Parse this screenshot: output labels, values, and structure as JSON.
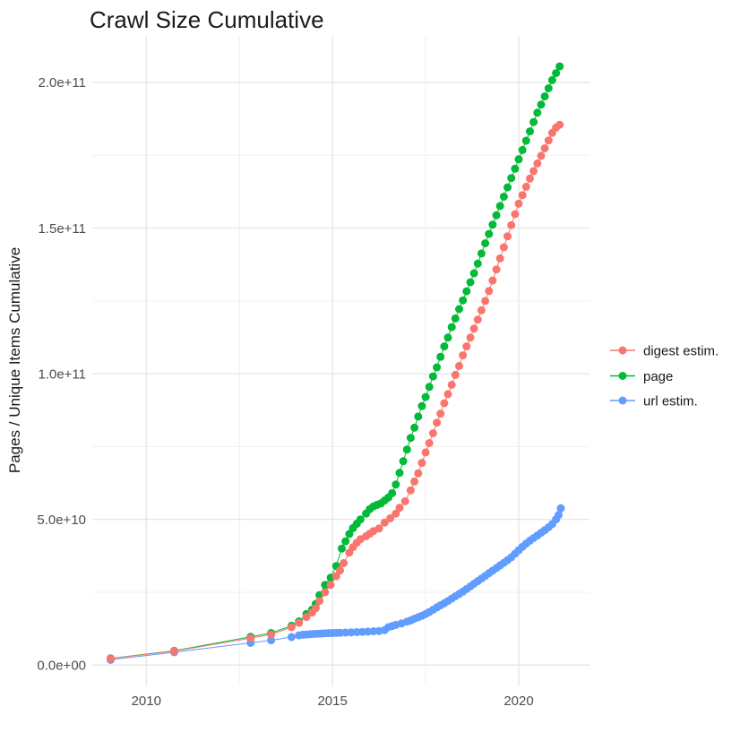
{
  "page": {
    "background": "#ffffff"
  },
  "chart_data": {
    "type": "scatter",
    "title": "Crawl Size Cumulative",
    "xlabel": "",
    "ylabel": "Pages / Unique Items Cumulative",
    "value_unit": "items (values stored in billions, 1 = 1e9)",
    "grid": true,
    "legend_position": "right",
    "x_axis": {
      "range": [
        2008.55,
        2021.9
      ],
      "ticks": [
        {
          "value": 2010,
          "label": "2010"
        },
        {
          "value": 2015,
          "label": "2015"
        },
        {
          "value": 2020,
          "label": "2020"
        }
      ],
      "minor": [
        2012.5,
        2017.5
      ]
    },
    "y_axis": {
      "range": [
        -7,
        216
      ],
      "ticks": [
        {
          "value": 0,
          "label": "0.0e+00"
        },
        {
          "value": 50,
          "label": "5.0e+10"
        },
        {
          "value": 100,
          "label": "1.0e+11"
        },
        {
          "value": 150,
          "label": "1.5e+11"
        },
        {
          "value": 200,
          "label": "2.0e+11"
        }
      ],
      "minor": [
        25,
        75,
        125,
        175
      ]
    },
    "legend": [
      {
        "label": "digest estim.",
        "color": "#F8766D"
      },
      {
        "label": "page",
        "color": "#00BA38"
      },
      {
        "label": "url estim.",
        "color": "#619CFF"
      }
    ],
    "draw_order": [
      "page",
      "url estim.",
      "digest estim."
    ],
    "series": [
      {
        "name": "digest estim.",
        "color": "#F8766D",
        "points": [
          [
            2009.04,
            2.2
          ],
          [
            2010.75,
            4.8
          ],
          [
            2012.8,
            9.2
          ],
          [
            2013.35,
            10.5
          ],
          [
            2013.9,
            13.0
          ],
          [
            2014.1,
            14.5
          ],
          [
            2014.3,
            16.5
          ],
          [
            2014.45,
            18.0
          ],
          [
            2014.55,
            19.5
          ],
          [
            2014.65,
            22.0
          ],
          [
            2014.8,
            25.0
          ],
          [
            2014.95,
            27.5
          ],
          [
            2015.1,
            30.5
          ],
          [
            2015.2,
            32.5
          ],
          [
            2015.3,
            35.0
          ],
          [
            2015.45,
            38.6
          ],
          [
            2015.55,
            40.5
          ],
          [
            2015.65,
            42.0
          ],
          [
            2015.75,
            43.2
          ],
          [
            2015.9,
            44.2
          ],
          [
            2016.0,
            45.1
          ],
          [
            2016.1,
            46.0
          ],
          [
            2016.25,
            46.9
          ],
          [
            2016.4,
            48.9
          ],
          [
            2016.55,
            50.4
          ],
          [
            2016.7,
            52.0
          ],
          [
            2016.8,
            54.0
          ],
          [
            2016.95,
            56.2
          ],
          [
            2017.1,
            60.0
          ],
          [
            2017.2,
            63.0
          ],
          [
            2017.3,
            65.8
          ],
          [
            2017.4,
            69.4
          ],
          [
            2017.5,
            73.0
          ],
          [
            2017.6,
            76.2
          ],
          [
            2017.7,
            79.6
          ],
          [
            2017.8,
            83.2
          ],
          [
            2017.9,
            86.3
          ],
          [
            2018.0,
            89.9
          ],
          [
            2018.1,
            93.0
          ],
          [
            2018.2,
            96.2
          ],
          [
            2018.3,
            99.6
          ],
          [
            2018.4,
            102.7
          ],
          [
            2018.5,
            106.3
          ],
          [
            2018.6,
            109.4
          ],
          [
            2018.7,
            112.4
          ],
          [
            2018.8,
            115.5
          ],
          [
            2018.9,
            118.6
          ],
          [
            2019.0,
            121.8
          ],
          [
            2019.1,
            125.0
          ],
          [
            2019.2,
            128.4
          ],
          [
            2019.3,
            132.0
          ],
          [
            2019.4,
            135.8
          ],
          [
            2019.5,
            139.6
          ],
          [
            2019.6,
            143.4
          ],
          [
            2019.7,
            147.2
          ],
          [
            2019.8,
            151.0
          ],
          [
            2019.9,
            154.8
          ],
          [
            2020.0,
            158.4
          ],
          [
            2020.1,
            161.3
          ],
          [
            2020.2,
            164.2
          ],
          [
            2020.3,
            167.0
          ],
          [
            2020.4,
            169.6
          ],
          [
            2020.5,
            172.2
          ],
          [
            2020.6,
            174.8
          ],
          [
            2020.7,
            177.4
          ],
          [
            2020.8,
            180.1
          ],
          [
            2020.9,
            182.7
          ],
          [
            2021.0,
            184.5
          ],
          [
            2021.1,
            185.5
          ]
        ]
      },
      {
        "name": "page",
        "color": "#00BA38",
        "points": [
          [
            2009.04,
            2.3
          ],
          [
            2010.75,
            4.9
          ],
          [
            2012.8,
            9.7
          ],
          [
            2013.35,
            11.0
          ],
          [
            2013.9,
            13.5
          ],
          [
            2014.1,
            15.0
          ],
          [
            2014.3,
            17.5
          ],
          [
            2014.45,
            19.0
          ],
          [
            2014.55,
            21.0
          ],
          [
            2014.65,
            24.0
          ],
          [
            2014.8,
            27.5
          ],
          [
            2014.95,
            30.0
          ],
          [
            2015.1,
            34.0
          ],
          [
            2015.25,
            40.0
          ],
          [
            2015.35,
            42.5
          ],
          [
            2015.45,
            45.0
          ],
          [
            2015.55,
            47.0
          ],
          [
            2015.65,
            48.5
          ],
          [
            2015.75,
            50.0
          ],
          [
            2015.9,
            52.0
          ],
          [
            2016.0,
            53.5
          ],
          [
            2016.1,
            54.5
          ],
          [
            2016.2,
            55.0
          ],
          [
            2016.3,
            55.5
          ],
          [
            2016.4,
            56.5
          ],
          [
            2016.5,
            57.5
          ],
          [
            2016.6,
            59.0
          ],
          [
            2016.7,
            62.0
          ],
          [
            2016.8,
            66.0
          ],
          [
            2016.9,
            70.0
          ],
          [
            2017.0,
            74.0
          ],
          [
            2017.1,
            78.0
          ],
          [
            2017.2,
            81.5
          ],
          [
            2017.3,
            85.3
          ],
          [
            2017.4,
            88.9
          ],
          [
            2017.5,
            92.0
          ],
          [
            2017.6,
            95.5
          ],
          [
            2017.7,
            99.1
          ],
          [
            2017.8,
            102.2
          ],
          [
            2017.9,
            105.8
          ],
          [
            2018.0,
            109.4
          ],
          [
            2018.1,
            112.4
          ],
          [
            2018.2,
            116.0
          ],
          [
            2018.3,
            119.0
          ],
          [
            2018.4,
            122.2
          ],
          [
            2018.5,
            125.2
          ],
          [
            2018.6,
            128.3
          ],
          [
            2018.7,
            131.4
          ],
          [
            2018.8,
            134.5
          ],
          [
            2018.9,
            137.8
          ],
          [
            2019.0,
            141.3
          ],
          [
            2019.1,
            144.8
          ],
          [
            2019.2,
            148.0
          ],
          [
            2019.3,
            151.2
          ],
          [
            2019.4,
            154.4
          ],
          [
            2019.5,
            157.6
          ],
          [
            2019.6,
            160.8
          ],
          [
            2019.7,
            164.0
          ],
          [
            2019.8,
            167.2
          ],
          [
            2019.9,
            170.4
          ],
          [
            2020.0,
            173.6
          ],
          [
            2020.1,
            176.8
          ],
          [
            2020.2,
            180.0
          ],
          [
            2020.3,
            183.2
          ],
          [
            2020.4,
            186.4
          ],
          [
            2020.5,
            189.6
          ],
          [
            2020.6,
            192.4
          ],
          [
            2020.7,
            195.2
          ],
          [
            2020.8,
            198.0
          ],
          [
            2020.9,
            200.8
          ],
          [
            2021.0,
            203.2
          ],
          [
            2021.1,
            205.5
          ]
        ]
      },
      {
        "name": "url estim.",
        "color": "#619CFF",
        "points": [
          [
            2009.04,
            1.8
          ],
          [
            2010.75,
            4.4
          ],
          [
            2012.8,
            7.6
          ],
          [
            2013.35,
            8.5
          ],
          [
            2013.9,
            9.6
          ],
          [
            2014.1,
            10.2
          ],
          [
            2014.2,
            10.4
          ],
          [
            2014.3,
            10.5
          ],
          [
            2014.4,
            10.6
          ],
          [
            2014.5,
            10.7
          ],
          [
            2014.6,
            10.75
          ],
          [
            2014.7,
            10.8
          ],
          [
            2014.8,
            10.9
          ],
          [
            2014.9,
            10.95
          ],
          [
            2015.0,
            11.0
          ],
          [
            2015.1,
            11.05
          ],
          [
            2015.2,
            11.1
          ],
          [
            2015.35,
            11.15
          ],
          [
            2015.5,
            11.2
          ],
          [
            2015.65,
            11.3
          ],
          [
            2015.8,
            11.4
          ],
          [
            2015.95,
            11.5
          ],
          [
            2016.1,
            11.6
          ],
          [
            2016.25,
            11.7
          ],
          [
            2016.4,
            12.0
          ],
          [
            2016.5,
            13.0
          ],
          [
            2016.6,
            13.4
          ],
          [
            2016.7,
            13.8
          ],
          [
            2016.85,
            14.3
          ],
          [
            2017.0,
            14.9
          ],
          [
            2017.1,
            15.3
          ],
          [
            2017.2,
            15.9
          ],
          [
            2017.3,
            16.4
          ],
          [
            2017.4,
            16.9
          ],
          [
            2017.5,
            17.5
          ],
          [
            2017.6,
            18.2
          ],
          [
            2017.7,
            19.0
          ],
          [
            2017.8,
            19.8
          ],
          [
            2017.9,
            20.5
          ],
          [
            2018.0,
            21.2
          ],
          [
            2018.1,
            22.0
          ],
          [
            2018.2,
            22.8
          ],
          [
            2018.3,
            23.6
          ],
          [
            2018.4,
            24.4
          ],
          [
            2018.5,
            25.2
          ],
          [
            2018.6,
            26.1
          ],
          [
            2018.7,
            27.0
          ],
          [
            2018.8,
            27.9
          ],
          [
            2018.9,
            28.8
          ],
          [
            2019.0,
            29.7
          ],
          [
            2019.1,
            30.6
          ],
          [
            2019.2,
            31.5
          ],
          [
            2019.3,
            32.4
          ],
          [
            2019.4,
            33.3
          ],
          [
            2019.5,
            34.2
          ],
          [
            2019.6,
            35.1
          ],
          [
            2019.7,
            36.0
          ],
          [
            2019.8,
            37.0
          ],
          [
            2019.9,
            38.2
          ],
          [
            2020.0,
            39.4
          ],
          [
            2020.1,
            40.6
          ],
          [
            2020.2,
            41.7
          ],
          [
            2020.3,
            42.7
          ],
          [
            2020.4,
            43.6
          ],
          [
            2020.5,
            44.5
          ],
          [
            2020.6,
            45.4
          ],
          [
            2020.7,
            46.3
          ],
          [
            2020.8,
            47.3
          ],
          [
            2020.9,
            48.4
          ],
          [
            2021.0,
            50.0
          ],
          [
            2021.07,
            51.5
          ],
          [
            2021.13,
            53.8
          ]
        ]
      }
    ],
    "style": {
      "grid_major_color": "#E3E3E3",
      "grid_minor_color": "#F0F0F0",
      "tick_label_color": "#4D4D4D",
      "text_color": "#1A1A1A",
      "point_radius": 4.5,
      "line_width": 1
    }
  }
}
